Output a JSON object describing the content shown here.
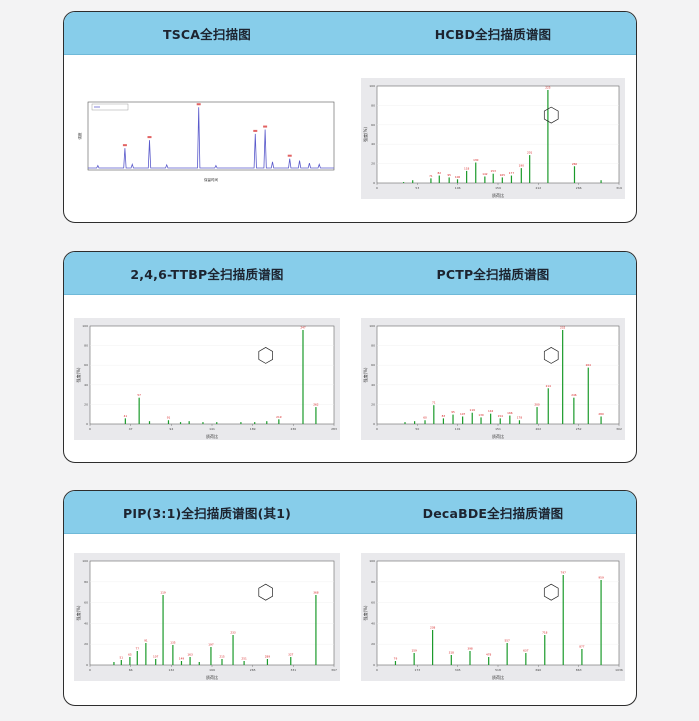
{
  "colors": {
    "page_bg": "#f3f3f4",
    "header_bg": "#87cdea",
    "panel_border": "#2d2d2d",
    "spectrum_peak": "#1a9a2a",
    "peak_label": "#d62020",
    "tic_line": "#5a5acb"
  },
  "panels": [
    {
      "titles": [
        "TSCA全扫描图",
        "HCBD全扫描质谱图"
      ]
    },
    {
      "titles": [
        "2,4,6-TTBP全扫描质谱图",
        "PCTP全扫描质谱图"
      ]
    },
    {
      "titles": [
        "PIP(3:1)全扫描质谱图(其1)",
        "DecaBDE全扫描质谱图"
      ]
    }
  ],
  "chart_labels": {
    "x_label": "质荷比",
    "y_label": "强度(%)",
    "tic_x_label": "保留时间",
    "tic_y_label": "强度"
  },
  "chart_data": [
    {
      "type": "line",
      "title": "TSCA全扫描图",
      "x": [
        0.04,
        0.15,
        0.18,
        0.25,
        0.32,
        0.45,
        0.52,
        0.68,
        0.72,
        0.75,
        0.82,
        0.86,
        0.9,
        0.94
      ],
      "values": [
        0.04,
        0.32,
        0.06,
        0.45,
        0.05,
        0.98,
        0.04,
        0.55,
        0.62,
        0.1,
        0.15,
        0.12,
        0.08,
        0.06
      ],
      "ylim": [
        0,
        1
      ]
    },
    {
      "type": "bar",
      "title": "HCBD全扫描质谱图",
      "x": [
        35,
        47,
        71,
        82,
        95,
        106,
        118,
        130,
        142,
        153,
        165,
        177,
        190,
        201,
        225,
        260,
        295
      ],
      "values": [
        1,
        3,
        5,
        8,
        6,
        4,
        13,
        22,
        7,
        10,
        6,
        8,
        16,
        30,
        100,
        18,
        3
      ],
      "ylim": [
        0,
        100
      ]
    },
    {
      "type": "bar",
      "title": "2,4,6-TTBP全扫描质谱图",
      "x": [
        41,
        57,
        69,
        91,
        105,
        115,
        131,
        147,
        175,
        191,
        205,
        219,
        247,
        262
      ],
      "values": [
        6,
        28,
        3,
        4,
        2,
        3,
        2,
        2,
        2,
        2,
        3,
        5,
        100,
        18
      ],
      "ylim": [
        0,
        100
      ]
    },
    {
      "type": "bar",
      "title": "PCTP全扫描质谱图",
      "x": [
        35,
        47,
        60,
        71,
        83,
        95,
        107,
        119,
        130,
        142,
        154,
        166,
        178,
        200,
        214,
        232,
        246,
        264,
        280
      ],
      "values": [
        2,
        3,
        4,
        20,
        6,
        10,
        8,
        12,
        7,
        11,
        6,
        9,
        4,
        18,
        38,
        100,
        28,
        60,
        8
      ],
      "ylim": [
        0,
        100
      ]
    },
    {
      "type": "bar",
      "title": "PIP(3:1)全扫描质谱图(其1)",
      "x": [
        39,
        51,
        65,
        77,
        91,
        107,
        119,
        135,
        149,
        163,
        178,
        197,
        215,
        233,
        251,
        289,
        327,
        368
      ],
      "values": [
        3,
        5,
        8,
        14,
        22,
        6,
        70,
        20,
        4,
        8,
        3,
        18,
        6,
        30,
        4,
        6,
        8,
        70
      ],
      "ylim": [
        0,
        100
      ]
    },
    {
      "type": "bar",
      "title": "DecaBDE全扫描质谱图",
      "x": [
        79,
        159,
        238,
        318,
        398,
        478,
        557,
        637,
        718,
        797,
        877,
        959
      ],
      "values": [
        4,
        12,
        35,
        10,
        14,
        8,
        22,
        12,
        30,
        90,
        16,
        85
      ],
      "ylim": [
        0,
        100
      ]
    }
  ]
}
